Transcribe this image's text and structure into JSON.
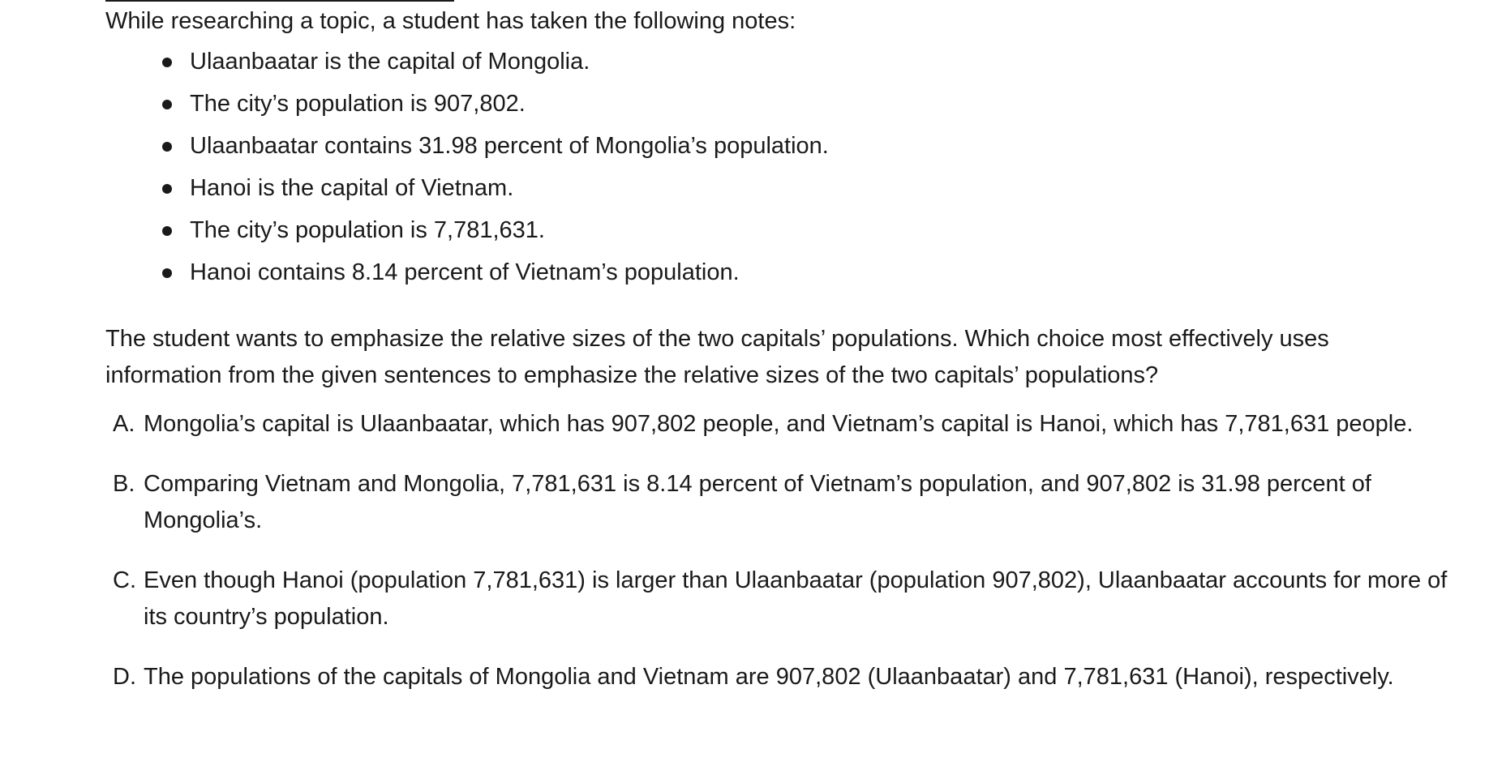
{
  "intro": "While researching a topic, a student has taken the following notes:",
  "notes": [
    "Ulaanbaatar is the capital of Mongolia.",
    "The city’s population is 907,802.",
    "Ulaanbaatar contains 31.98 percent of Mongolia’s population.",
    "Hanoi is the capital of Vietnam.",
    "The city’s population is 7,781,631.",
    "Hanoi contains 8.14 percent of Vietnam’s population."
  ],
  "question": "The student wants to emphasize the relative sizes of the two capitals’ populations. Which choice most effectively uses information from the given sentences to emphasize the relative sizes of the two capitals’ populations?",
  "choices": [
    {
      "letter": "A.",
      "text": "Mongolia’s capital is Ulaanbaatar, which has 907,802 people, and Vietnam’s capital is Hanoi, which has 7,781,631 people."
    },
    {
      "letter": "B.",
      "text": "Comparing Vietnam and Mongolia, 7,781,631 is 8.14 percent of Vietnam’s population, and 907,802 is 31.98 percent of Mongolia’s."
    },
    {
      "letter": "C.",
      "text": "Even though Hanoi (population 7,781,631) is larger than Ulaanbaatar (population 907,802), Ulaanbaatar accounts for more of its country’s population."
    },
    {
      "letter": "D.",
      "text": "The populations of the capitals of Mongolia and Vietnam are 907,802 (Ulaanbaatar) and 7,781,631 (Hanoi), respectively."
    }
  ]
}
